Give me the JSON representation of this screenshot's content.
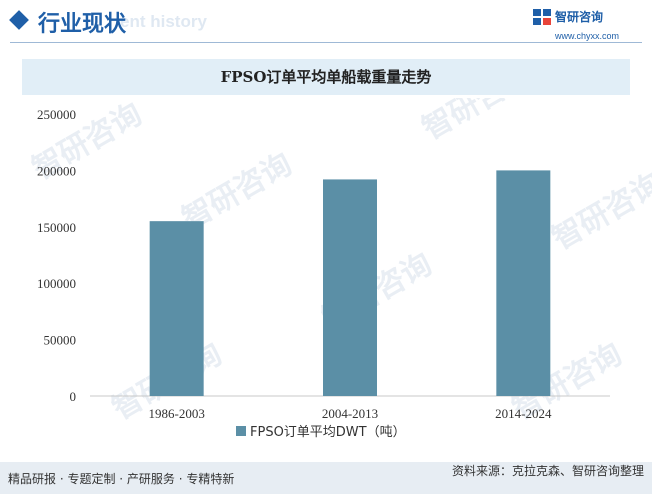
{
  "header": {
    "title": "行业现状",
    "watermark_text": "ent history",
    "brand_name": "智研咨询",
    "brand_url": "www.chyxx.com"
  },
  "watermark": "智研咨询",
  "footer": {
    "slogan": "精品研报 · 专题定制 · 产研服务 · 专精特新",
    "source": "资料来源：克拉克森、智研咨询整理"
  },
  "colors": {
    "bar": "#5b8fa6",
    "brand": "#1f5fa8",
    "title_band": "#e1eef7"
  },
  "chart_data": {
    "type": "bar",
    "title": "FPSO订单平均单船载重量走势",
    "categories": [
      "1986-2003",
      "2004-2013",
      "2014-2024"
    ],
    "series": [
      {
        "name": "FPSO订单平均DWT（吨）",
        "values": [
          155000,
          192000,
          200000
        ]
      }
    ],
    "ylim": [
      0,
      250000
    ],
    "yticks": [
      0,
      50000,
      100000,
      150000,
      200000,
      250000
    ],
    "ytick_labels": [
      "0",
      "50000",
      "100000",
      "150000",
      "200000",
      "250000"
    ],
    "grid": false,
    "legend": "bottom-center",
    "xlabel": "",
    "ylabel": ""
  }
}
